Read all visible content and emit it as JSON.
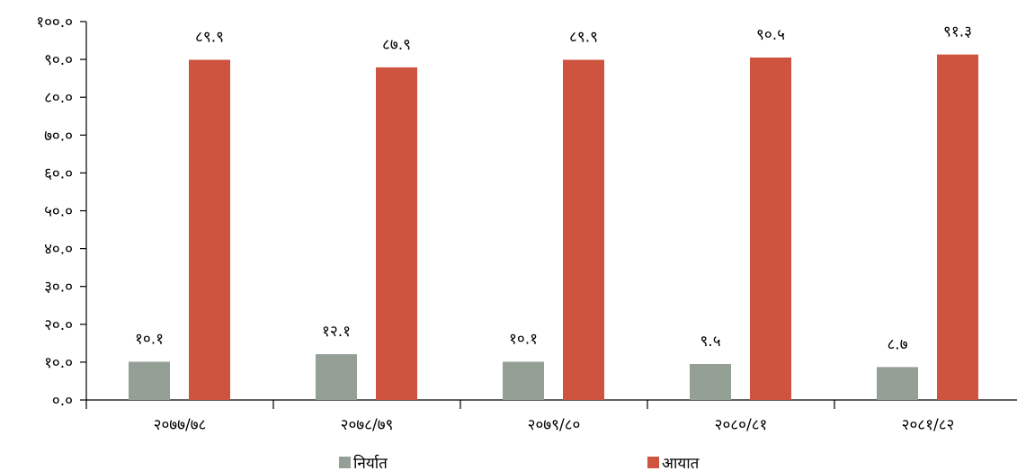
{
  "chart_data": {
    "type": "bar",
    "categories": [
      "२०७७/७८",
      "२०७८/७९",
      "२०७९/८०",
      "२०८०/८१",
      "२०८१/८२"
    ],
    "series": [
      {
        "name": "निर्यात",
        "values": [
          10.1,
          12.1,
          10.1,
          9.5,
          8.7
        ],
        "labels": [
          "१०.१",
          "१२.१",
          "१०.१",
          "९.५",
          "८.७"
        ],
        "color": "#949f96"
      },
      {
        "name": "आयात",
        "values": [
          89.9,
          87.9,
          89.9,
          90.5,
          91.3
        ],
        "labels": [
          "८९.९",
          "८७.९",
          "८९.९",
          "९०.५",
          "९१.३"
        ],
        "color": "#cf5440"
      }
    ],
    "ylim": [
      0,
      100
    ],
    "yticks": [
      0,
      10,
      20,
      30,
      40,
      50,
      60,
      70,
      80,
      90,
      100
    ],
    "ytick_labels": [
      "०.०",
      "१०.०",
      "२०.०",
      "३०.०",
      "४०.०",
      "५०.०",
      "६०.०",
      "७०.०",
      "८०.०",
      "९०.०",
      "१००.०"
    ],
    "grid": false,
    "legend_position": "bottom",
    "title": "",
    "xlabel": "",
    "ylabel": ""
  }
}
